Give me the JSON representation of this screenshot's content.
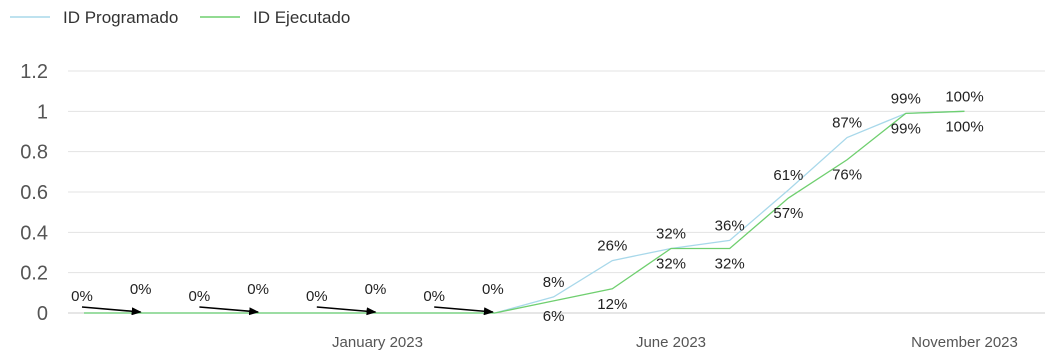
{
  "chart_data": {
    "type": "line",
    "title": "",
    "xlabel": "",
    "ylabel": "",
    "ylim": [
      0,
      1.2
    ],
    "yticks": [
      "0",
      "0.2",
      "0.4",
      "0.6",
      "0.8",
      "1",
      "1.2"
    ],
    "x_tick_labels": [
      {
        "at": 5,
        "label": "January 2023"
      },
      {
        "at": 10,
        "label": "June 2023"
      },
      {
        "at": 15,
        "label": "November 2023"
      }
    ],
    "grid": true,
    "legend": "top-left",
    "series": [
      {
        "name": "ID Programado",
        "color": "#a8d8ea",
        "values": [
          0,
          0,
          0,
          0,
          0,
          0,
          0,
          0,
          0.08,
          0.26,
          0.32,
          0.36,
          0.61,
          0.87,
          0.99,
          1.0
        ],
        "labels": [
          "0%",
          "0%",
          "0%",
          "0%",
          "0%",
          "0%",
          "0%",
          "0%",
          "8%",
          "26%",
          "32%",
          "36%",
          "61%",
          "87%",
          "99%",
          "100%"
        ]
      },
      {
        "name": "ID Ejecutado",
        "color": "#6fcf6f",
        "values": [
          0,
          0,
          0,
          0,
          0,
          0,
          0,
          0,
          0.06,
          0.12,
          0.32,
          0.32,
          0.57,
          0.76,
          0.99,
          1.0
        ],
        "labels": [
          "0%",
          "0%",
          "0%",
          "0%",
          "0%",
          "0%",
          "0%",
          "0%",
          "6%",
          "12%",
          "32%",
          "32%",
          "57%",
          "76%",
          "99%",
          "100%"
        ]
      }
    ]
  }
}
